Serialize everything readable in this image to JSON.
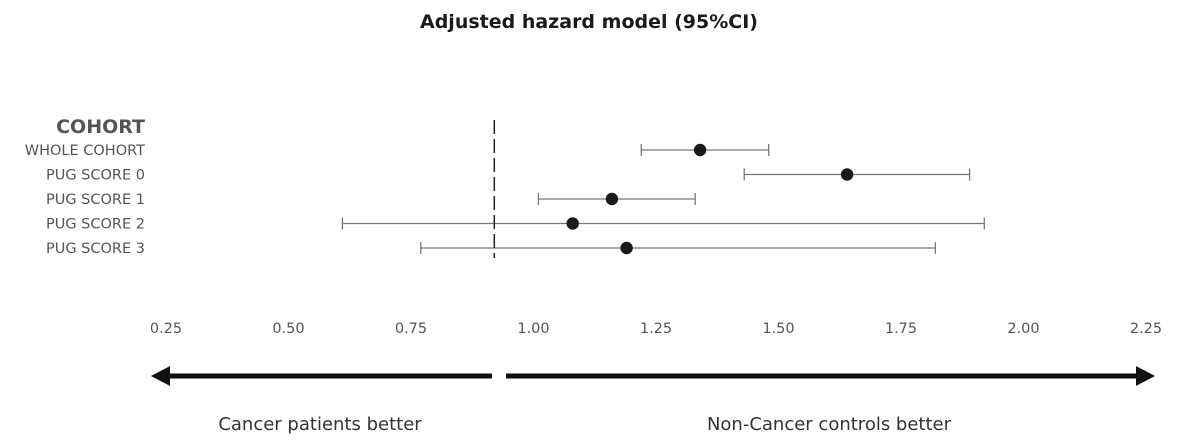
{
  "chart_data": {
    "type": "forest",
    "title": "Adjusted hazard model (95%CI)",
    "row_header": "COHORT",
    "rows": [
      {
        "label": "WHOLE COHORT",
        "estimate": 1.34,
        "lower": 1.22,
        "upper": 1.48
      },
      {
        "label": "PUG SCORE 0",
        "estimate": 1.64,
        "lower": 1.43,
        "upper": 1.89
      },
      {
        "label": "PUG SCORE 1",
        "estimate": 1.16,
        "lower": 1.01,
        "upper": 1.33
      },
      {
        "label": "PUG SCORE 2",
        "estimate": 1.08,
        "lower": 0.61,
        "upper": 1.92
      },
      {
        "label": "PUG SCORE 3",
        "estimate": 1.19,
        "lower": 0.77,
        "upper": 1.82
      }
    ],
    "x_ticks": [
      "0.25",
      "0.50",
      "0.75",
      "1.00",
      "1.25",
      "1.50",
      "1.75",
      "2.00",
      "2.25"
    ],
    "x_tick_values": [
      0.25,
      0.5,
      0.75,
      1.0,
      1.25,
      1.5,
      1.75,
      2.0,
      2.25
    ],
    "xlim": [
      0.25,
      2.25
    ],
    "reference_line": 0.92,
    "direction_labels": {
      "left": "Cancer patients better",
      "right": "Non-Cancer controls better"
    }
  }
}
